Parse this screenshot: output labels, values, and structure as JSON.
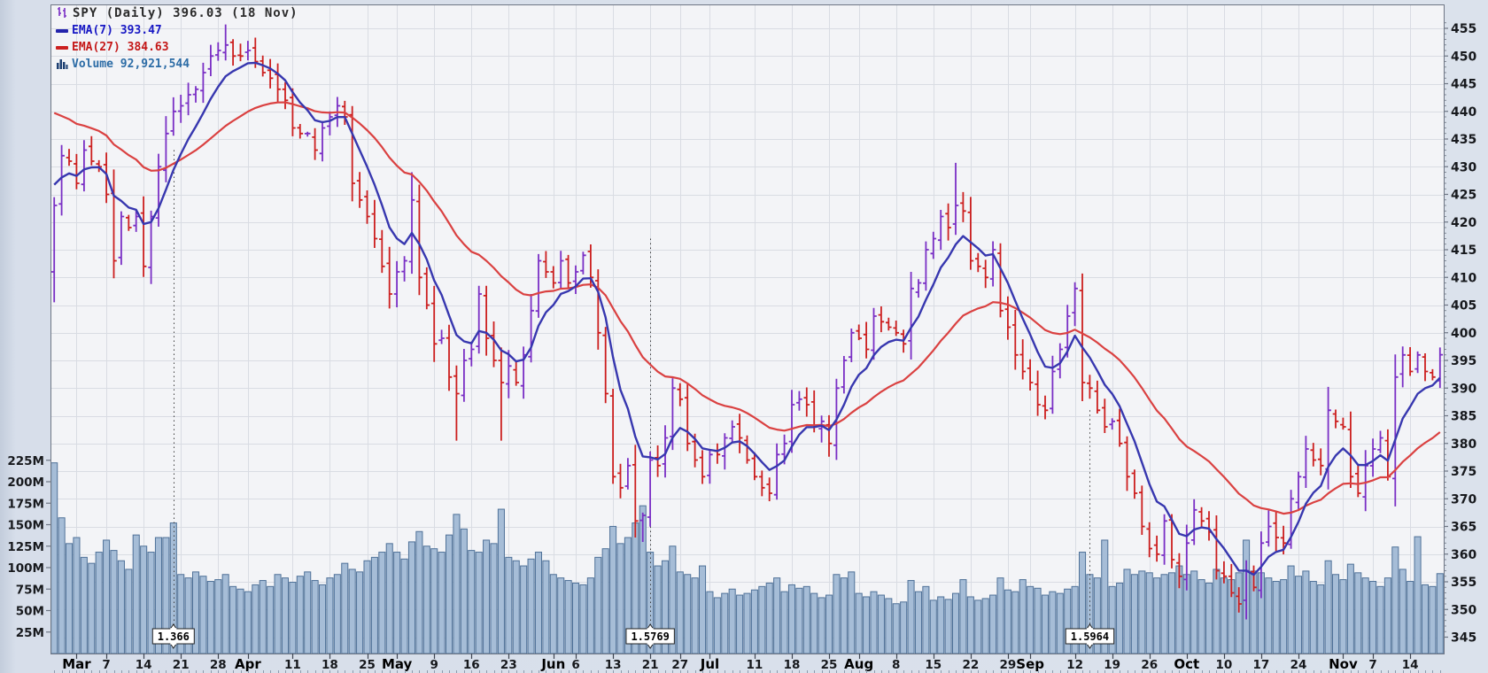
{
  "legend": {
    "title": "SPY (Daily) 396.03 (18 Nov)",
    "ema7": "EMA(7) 393.47",
    "ema27": "EMA(27) 384.63",
    "volume": "Volume 92,921,544"
  },
  "colors": {
    "candle_up": "#7a2fc5",
    "candle_down": "#cc1f1f",
    "ema7_line": "#3737af",
    "ema27_line": "#da4141",
    "volume_fill": "#a6bdd7",
    "volume_stroke": "#4f7198",
    "plot_bg": "#f3f4f7",
    "plot_border": "#6e7684",
    "grid": "#d9dce3",
    "axis_text": "#17191d",
    "outer_bg": "#d9e0ea",
    "dotted_line": "#3c3c3c"
  },
  "chart_data": {
    "type": "bar",
    "subtype": "ohlc-candlestick-with-volume",
    "symbol": "SPY",
    "timeframe": "Daily",
    "last_close": "396.03",
    "last_date": "18 Nov",
    "title": "SPY (Daily) 396.03 (18 Nov)",
    "legend_position": "top-left",
    "grid": true,
    "price_axis": {
      "side": "right",
      "min": 345,
      "max": 455,
      "step": 5,
      "labels": [
        "455",
        "450",
        "445",
        "440",
        "435",
        "430",
        "425",
        "420",
        "415",
        "410",
        "405",
        "400",
        "395",
        "390",
        "385",
        "380",
        "375",
        "370",
        "365",
        "360",
        "355",
        "350",
        "345"
      ]
    },
    "volume_axis": {
      "side": "left",
      "unit": "millions",
      "labels": [
        "225M",
        "200M",
        "175M",
        "150M",
        "125M",
        "100M",
        "75M",
        "50M",
        "25M"
      ],
      "values": [
        225,
        200,
        175,
        150,
        125,
        100,
        75,
        50,
        25
      ]
    },
    "x_ticks": [
      {
        "label": "Mar",
        "index": 3,
        "month": true
      },
      {
        "label": "7",
        "index": 7
      },
      {
        "label": "14",
        "index": 12
      },
      {
        "label": "21",
        "index": 17
      },
      {
        "label": "28",
        "index": 22
      },
      {
        "label": "Apr",
        "index": 26,
        "month": true
      },
      {
        "label": "11",
        "index": 32
      },
      {
        "label": "18",
        "index": 37
      },
      {
        "label": "25",
        "index": 42
      },
      {
        "label": "May",
        "index": 46,
        "month": true
      },
      {
        "label": "9",
        "index": 51
      },
      {
        "label": "16",
        "index": 56
      },
      {
        "label": "23",
        "index": 61
      },
      {
        "label": "Jun",
        "index": 67,
        "month": true
      },
      {
        "label": "6",
        "index": 70
      },
      {
        "label": "13",
        "index": 75
      },
      {
        "label": "21",
        "index": 80
      },
      {
        "label": "27",
        "index": 84
      },
      {
        "label": "Jul",
        "index": 88,
        "month": true
      },
      {
        "label": "11",
        "index": 94
      },
      {
        "label": "18",
        "index": 99
      },
      {
        "label": "25",
        "index": 104
      },
      {
        "label": "Aug",
        "index": 108,
        "month": true
      },
      {
        "label": "8",
        "index": 113
      },
      {
        "label": "15",
        "index": 118
      },
      {
        "label": "22",
        "index": 123
      },
      {
        "label": "29",
        "index": 128
      },
      {
        "label": "Sep",
        "index": 131,
        "month": true
      },
      {
        "label": "12",
        "index": 137
      },
      {
        "label": "19",
        "index": 142
      },
      {
        "label": "26",
        "index": 147
      },
      {
        "label": "Oct",
        "index": 152,
        "month": true
      },
      {
        "label": "10",
        "index": 157
      },
      {
        "label": "17",
        "index": 162
      },
      {
        "label": "24",
        "index": 167
      },
      {
        "label": "Nov",
        "index": 173,
        "month": true
      },
      {
        "label": "7",
        "index": 177
      },
      {
        "label": "14",
        "index": 182
      }
    ],
    "num_bars": 187,
    "closes": [
      423,
      432,
      431,
      427,
      433,
      431,
      430,
      425,
      413,
      421,
      419,
      421,
      412,
      421,
      430,
      436,
      440,
      441,
      443,
      444,
      447,
      450,
      451,
      452,
      450,
      450,
      451,
      449,
      447,
      446,
      444,
      442,
      437,
      436,
      436,
      433,
      437,
      439,
      441,
      439,
      427,
      424,
      421,
      417,
      412,
      407,
      411,
      413,
      424,
      410,
      405,
      398,
      399,
      392,
      389,
      395,
      397,
      407,
      399,
      395,
      391,
      394,
      391,
      396,
      404,
      413,
      411,
      409,
      413,
      409,
      411,
      414,
      410,
      400,
      389,
      374,
      372,
      376,
      366,
      367,
      377,
      376,
      381,
      390,
      388,
      380,
      377,
      374,
      378,
      378,
      381,
      383,
      381,
      377,
      374,
      372,
      371,
      378,
      380,
      387,
      388,
      387,
      383,
      384,
      380,
      390,
      395,
      400,
      399,
      397,
      403,
      402,
      401,
      400,
      398,
      408,
      409,
      415,
      417,
      421,
      419,
      423,
      422,
      413,
      412,
      410,
      415,
      404,
      401,
      396,
      393,
      391,
      387,
      386,
      393,
      397,
      403,
      408,
      391,
      390,
      386,
      383,
      384,
      380,
      374,
      371,
      365,
      361,
      360,
      366,
      359,
      356,
      362,
      368,
      366,
      364,
      357,
      356,
      353,
      351,
      357,
      354,
      362,
      365,
      363,
      362,
      370,
      374,
      379,
      377,
      376,
      386,
      384,
      383,
      374,
      371,
      376,
      379,
      381,
      374,
      392,
      396,
      393,
      396,
      393,
      392,
      396.03
    ],
    "volumes_millions": [
      222,
      158,
      128,
      135,
      112,
      105,
      118,
      132,
      120,
      108,
      98,
      138,
      125,
      118,
      135,
      135,
      152,
      92,
      88,
      95,
      90,
      84,
      86,
      92,
      78,
      75,
      72,
      80,
      85,
      78,
      92,
      88,
      83,
      90,
      95,
      85,
      80,
      88,
      92,
      105,
      98,
      95,
      108,
      112,
      118,
      128,
      118,
      110,
      130,
      142,
      125,
      122,
      118,
      138,
      162,
      145,
      120,
      118,
      132,
      128,
      168,
      112,
      108,
      102,
      110,
      118,
      108,
      92,
      88,
      85,
      82,
      80,
      88,
      112,
      122,
      148,
      128,
      135,
      152,
      172,
      118,
      102,
      108,
      125,
      95,
      92,
      88,
      102,
      72,
      65,
      70,
      75,
      68,
      70,
      74,
      78,
      82,
      88,
      72,
      80,
      76,
      78,
      70,
      65,
      68,
      92,
      88,
      95,
      70,
      66,
      72,
      68,
      64,
      58,
      60,
      85,
      72,
      78,
      62,
      66,
      63,
      70,
      86,
      66,
      62,
      64,
      68,
      88,
      74,
      72,
      86,
      78,
      76,
      68,
      72,
      70,
      75,
      78,
      118,
      92,
      88,
      132,
      78,
      82,
      98,
      92,
      96,
      94,
      88,
      92,
      94,
      102,
      92,
      96,
      86,
      82,
      98,
      88,
      86,
      94,
      132,
      96,
      94,
      88,
      84,
      86,
      102,
      90,
      96,
      84,
      80,
      108,
      92,
      86,
      104,
      94,
      88,
      84,
      78,
      88,
      124,
      98,
      84,
      136,
      80,
      78,
      93
    ],
    "wick_overrides": {
      "0": {
        "open": 411,
        "low": 405.5,
        "high": 424.5
      },
      "23": {
        "high": 455.7
      },
      "48": {
        "high": 429
      },
      "54": {
        "low": 380.5
      },
      "60": {
        "low": 380.5
      },
      "78": {
        "low": 363
      },
      "79": {
        "low": 362.2
      },
      "121": {
        "high": 430.7
      },
      "160": {
        "low": 348.2
      }
    },
    "overlays": [
      {
        "name": "EMA(7)",
        "last_value": 393.47,
        "seed": 428
      },
      {
        "name": "EMA(27)",
        "last_value": 384.63,
        "seed": 441
      }
    ],
    "annotations": [
      {
        "label": "1.366",
        "index": 16,
        "top_price": 433
      },
      {
        "label": "1.5769",
        "index": 80,
        "top_price": 417
      },
      {
        "label": "1.5964",
        "index": 139,
        "top_price": 386
      }
    ]
  }
}
